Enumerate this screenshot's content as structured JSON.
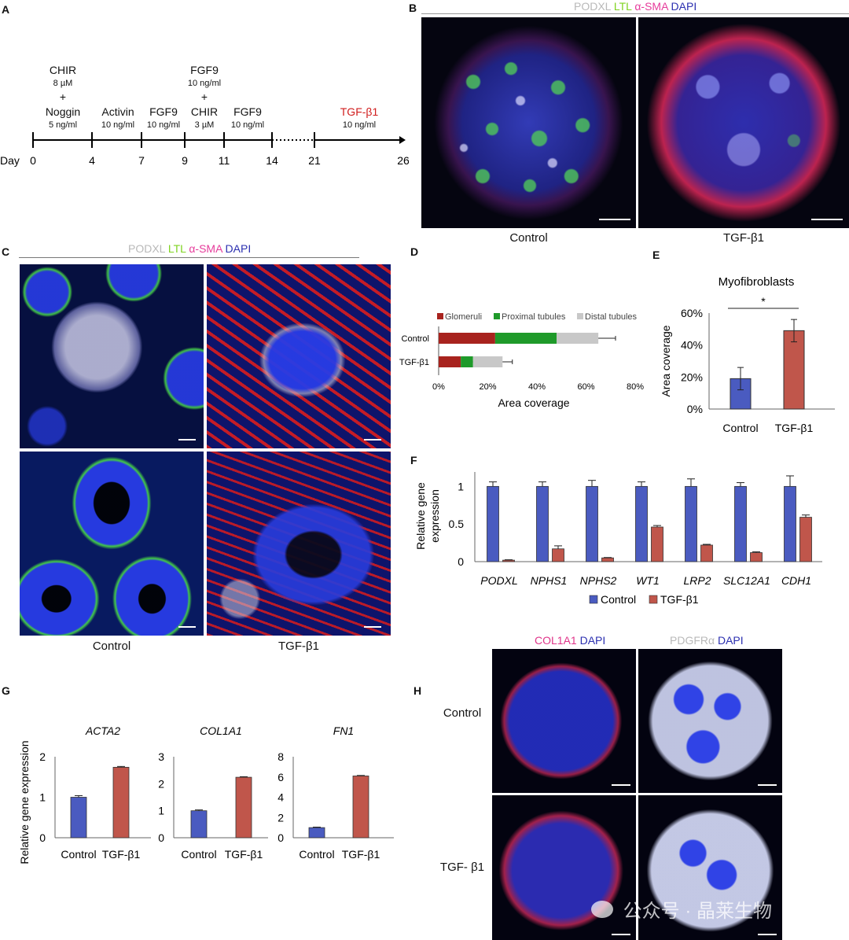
{
  "panel_labels": {
    "a": "A",
    "b": "B",
    "c": "C",
    "d": "D",
    "e": "E",
    "f": "F",
    "g": "G",
    "h": "H"
  },
  "panel_a": {
    "day_label": "Day",
    "days": [
      "0",
      "4",
      "7",
      "9",
      "11",
      "14",
      "21",
      "26"
    ],
    "steps": [
      {
        "lines": [
          "CHIR",
          "8 µM",
          "+",
          "Noggin",
          "5 ng/ml"
        ]
      },
      {
        "lines": [
          "Activin",
          "10 ng/ml"
        ]
      },
      {
        "lines": [
          "FGF9",
          "10 ng/ml"
        ]
      },
      {
        "lines": [
          "FGF9",
          "10 ng/ml",
          "+",
          "CHIR",
          "3 µM"
        ]
      },
      {
        "lines": [
          "FGF9",
          "10 ng/ml"
        ]
      },
      {
        "lines": [
          "TGF-β1",
          "10 ng/ml"
        ]
      }
    ]
  },
  "stains_bc": {
    "podxl": "PODXL",
    "ltl": "LTL",
    "sma": "α-SMA",
    "dapi": "DAPI"
  },
  "stains_h": {
    "col": "COL1A1",
    "dapi": "DAPI",
    "pdg": "PDGFRα"
  },
  "captions": {
    "b_left": "Control",
    "b_right": "TGF-β1",
    "c_left": "Control",
    "c_right": "TGF-β1",
    "h_row1": "Control",
    "h_row2": "TGF- β1"
  },
  "colors": {
    "control": "#4a5bc0",
    "tgf": "#c0564b",
    "glomeruli": "#a8231e",
    "proximal": "#1f9a2a",
    "distal": "#c8c8c8",
    "podxl": "#b9b9b9",
    "ltl": "#7fd321",
    "sma": "#e63c9b",
    "dapi": "#2b2fb0",
    "tgf_text": "#d01c1c"
  },
  "watermark": "公众号 · 晶莱生物",
  "chart_data": [
    {
      "id": "D",
      "type": "bar",
      "orientation": "horizontal",
      "stacked": true,
      "categories": [
        "Control",
        "TGF-β1"
      ],
      "series": [
        {
          "name": "Glomeruli",
          "values": [
            23,
            9
          ],
          "errors": [
            0,
            0
          ]
        },
        {
          "name": "Proximal tubules",
          "values": [
            25,
            5
          ],
          "errors": [
            4,
            2
          ]
        },
        {
          "name": "Distal tubules",
          "values": [
            17,
            12
          ],
          "errors": [
            7,
            4
          ]
        }
      ],
      "xlabel": "Area coverage",
      "xticks": [
        "0%",
        "20%",
        "40%",
        "60%",
        "80%"
      ],
      "xlim": [
        0,
        80
      ],
      "legend": "top"
    },
    {
      "id": "E",
      "type": "bar",
      "title": "Myofibroblasts",
      "categories": [
        "Control",
        "TGF-β1"
      ],
      "values": [
        19,
        49
      ],
      "errors": [
        7,
        7
      ],
      "ylabel": "Area coverage",
      "yticks": [
        "0%",
        "20%",
        "40%",
        "60%"
      ],
      "ylim": [
        0,
        60
      ],
      "significance": "*"
    },
    {
      "id": "F",
      "type": "bar",
      "categories": [
        "PODXL",
        "NPHS1",
        "NPHS2",
        "WT1",
        "LRP2",
        "SLC12A1",
        "CDH1"
      ],
      "series": [
        {
          "name": "Control",
          "values": [
            1,
            1,
            1,
            1,
            1,
            1,
            1
          ],
          "errors": [
            0.06,
            0.06,
            0.08,
            0.06,
            0.1,
            0.05,
            0.14
          ]
        },
        {
          "name": "TGF-β1",
          "values": [
            0.02,
            0.17,
            0.05,
            0.46,
            0.22,
            0.12,
            0.59
          ],
          "errors": [
            0.005,
            0.04,
            0.005,
            0.02,
            0.01,
            0.01,
            0.03
          ]
        }
      ],
      "ylabel": "Relative gene expression",
      "yticks": [
        "0",
        "0.5",
        "1"
      ],
      "ylim": [
        0,
        1.15
      ],
      "legend": "bottom"
    },
    {
      "id": "G1",
      "type": "bar",
      "title": "ACTA2",
      "categories": [
        "Control",
        "TGF-β1"
      ],
      "values": [
        1,
        1.74
      ],
      "errors": [
        0.04,
        0.02
      ],
      "ylabel": "Relative gene expression",
      "yticks": [
        "0",
        "1",
        "2"
      ],
      "ylim": [
        0,
        2
      ]
    },
    {
      "id": "G2",
      "type": "bar",
      "title": "COL1A1",
      "categories": [
        "Control",
        "TGF-β1"
      ],
      "values": [
        1,
        2.24
      ],
      "errors": [
        0.03,
        0.02
      ],
      "yticks": [
        "0",
        "1",
        "2",
        "3"
      ],
      "ylim": [
        0,
        3
      ]
    },
    {
      "id": "G3",
      "type": "bar",
      "title": "FN1",
      "categories": [
        "Control",
        "TGF-β1"
      ],
      "values": [
        1,
        6.1
      ],
      "errors": [
        0.05,
        0.05
      ],
      "yticks": [
        "0",
        "2",
        "4",
        "6",
        "8"
      ],
      "ylim": [
        0,
        8
      ]
    }
  ]
}
